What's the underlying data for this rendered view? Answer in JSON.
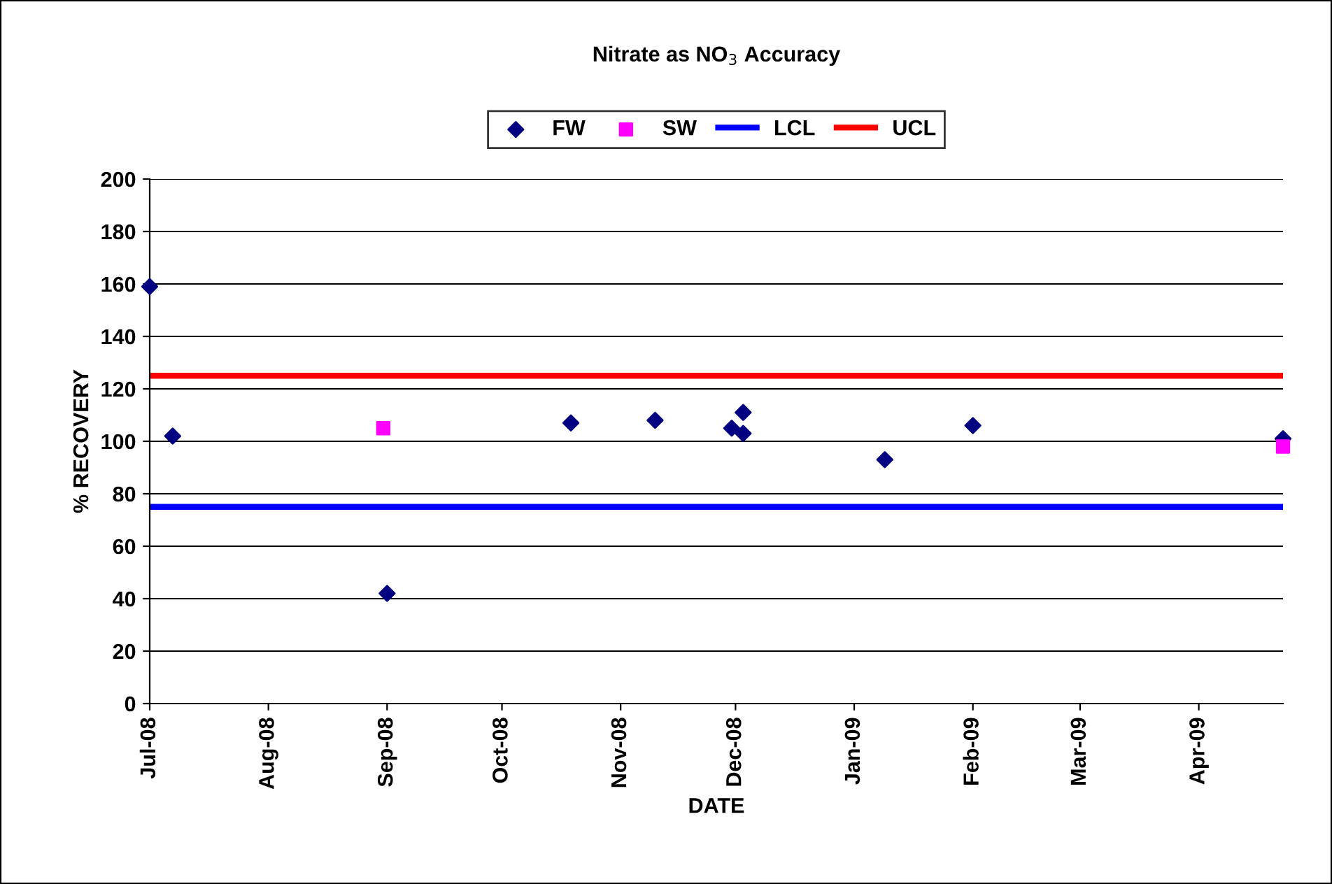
{
  "chart_data": {
    "type": "scatter",
    "title": "Nitrate as NO$_{3}$ Accuracy",
    "xlabel": "DATE",
    "ylabel": "% RECOVERY",
    "ylim": [
      0,
      200
    ],
    "yticks": [
      0,
      20,
      40,
      60,
      80,
      100,
      120,
      140,
      160,
      180,
      200
    ],
    "xlim": [
      "2008-07-01",
      "2009-04-23"
    ],
    "xticks": [
      {
        "value": "2008-07-01",
        "label": "Jul-08"
      },
      {
        "value": "2008-08-01",
        "label": "Aug-08"
      },
      {
        "value": "2008-09-01",
        "label": "Sep-08"
      },
      {
        "value": "2008-10-01",
        "label": "Oct-08"
      },
      {
        "value": "2008-11-01",
        "label": "Nov-08"
      },
      {
        "value": "2008-12-01",
        "label": "Dec-08"
      },
      {
        "value": "2009-01-01",
        "label": "Jan-09"
      },
      {
        "value": "2009-02-01",
        "label": "Feb-09"
      },
      {
        "value": "2009-03-01",
        "label": "Mar-09"
      },
      {
        "value": "2009-04-01",
        "label": "Apr-09"
      }
    ],
    "grid": "y",
    "legend": "top",
    "series": [
      {
        "name": "FW",
        "marker": "diamond",
        "color": "#000080",
        "x": [
          "2008-07-01",
          "2008-07-07",
          "2008-09-01",
          "2008-10-19",
          "2008-11-10",
          "2008-11-30",
          "2008-12-03",
          "2008-12-03",
          "2009-01-09",
          "2009-02-01",
          "2009-04-23"
        ],
        "values": [
          159,
          102,
          42,
          107,
          108,
          105,
          111,
          103,
          93,
          106,
          101
        ]
      },
      {
        "name": "SW",
        "marker": "square",
        "color": "#ff00ff",
        "x": [
          "2008-08-31",
          "2009-04-23"
        ],
        "values": [
          105,
          98
        ]
      },
      {
        "name": "LCL",
        "type": "line",
        "marker": "none",
        "color": "#0000ff",
        "x": [
          "2008-07-01",
          "2009-04-23"
        ],
        "values": [
          75,
          75
        ]
      },
      {
        "name": "UCL",
        "type": "line",
        "marker": "none",
        "color": "#ff0000",
        "x": [
          "2008-07-01",
          "2009-04-23"
        ],
        "values": [
          125,
          125
        ]
      }
    ]
  }
}
